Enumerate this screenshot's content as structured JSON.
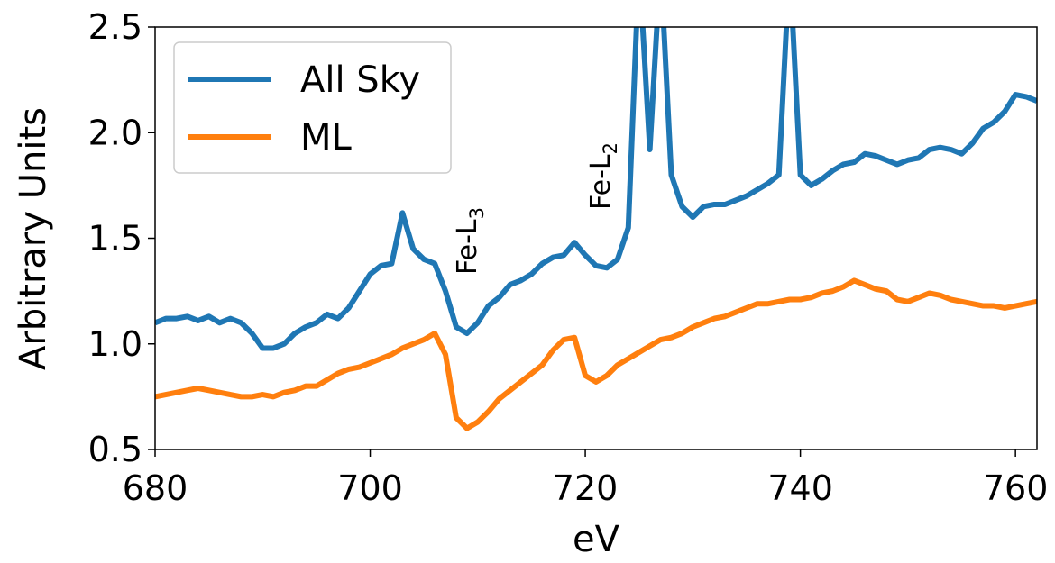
{
  "chart_data": {
    "type": "line",
    "xlabel": "eV",
    "ylabel": "Arbitrary Units",
    "x": [
      680,
      681,
      682,
      683,
      684,
      685,
      686,
      687,
      688,
      689,
      690,
      691,
      692,
      693,
      694,
      695,
      696,
      697,
      698,
      699,
      700,
      701,
      702,
      703,
      704,
      705,
      706,
      707,
      708,
      709,
      710,
      711,
      712,
      713,
      714,
      715,
      716,
      717,
      718,
      719,
      720,
      721,
      722,
      723,
      724,
      725,
      726,
      727,
      728,
      729,
      730,
      731,
      732,
      733,
      734,
      735,
      736,
      737,
      738,
      739,
      740,
      741,
      742,
      743,
      744,
      745,
      746,
      747,
      748,
      749,
      750,
      751,
      752,
      753,
      754,
      755,
      756,
      757,
      758,
      759,
      760,
      761,
      762
    ],
    "series": [
      {
        "name": "All Sky",
        "color": "#1f77b4",
        "values": [
          1.1,
          1.12,
          1.12,
          1.13,
          1.11,
          1.13,
          1.1,
          1.12,
          1.1,
          1.05,
          0.98,
          0.98,
          1.0,
          1.05,
          1.08,
          1.1,
          1.14,
          1.12,
          1.17,
          1.25,
          1.33,
          1.37,
          1.38,
          1.62,
          1.45,
          1.4,
          1.38,
          1.25,
          1.08,
          1.05,
          1.1,
          1.18,
          1.22,
          1.28,
          1.3,
          1.33,
          1.38,
          1.41,
          1.42,
          1.48,
          1.42,
          1.37,
          1.36,
          1.4,
          1.55,
          2.8,
          1.92,
          2.8,
          1.8,
          1.65,
          1.6,
          1.65,
          1.66,
          1.66,
          1.68,
          1.7,
          1.73,
          1.76,
          1.8,
          2.8,
          1.8,
          1.75,
          1.78,
          1.82,
          1.85,
          1.86,
          1.9,
          1.89,
          1.87,
          1.85,
          1.87,
          1.88,
          1.92,
          1.93,
          1.92,
          1.9,
          1.95,
          2.02,
          2.05,
          2.1,
          2.18,
          2.17,
          2.15
        ]
      },
      {
        "name": "ML",
        "color": "#ff7f0e",
        "values": [
          0.75,
          0.76,
          0.77,
          0.78,
          0.79,
          0.78,
          0.77,
          0.76,
          0.75,
          0.75,
          0.76,
          0.75,
          0.77,
          0.78,
          0.8,
          0.8,
          0.83,
          0.86,
          0.88,
          0.89,
          0.91,
          0.93,
          0.95,
          0.98,
          1.0,
          1.02,
          1.05,
          0.95,
          0.65,
          0.6,
          0.63,
          0.68,
          0.74,
          0.78,
          0.82,
          0.86,
          0.9,
          0.97,
          1.02,
          1.03,
          0.85,
          0.82,
          0.85,
          0.9,
          0.93,
          0.96,
          0.99,
          1.02,
          1.03,
          1.05,
          1.08,
          1.1,
          1.12,
          1.13,
          1.15,
          1.17,
          1.19,
          1.19,
          1.2,
          1.21,
          1.21,
          1.22,
          1.24,
          1.25,
          1.27,
          1.3,
          1.28,
          1.26,
          1.25,
          1.21,
          1.2,
          1.22,
          1.24,
          1.23,
          1.21,
          1.2,
          1.19,
          1.18,
          1.18,
          1.17,
          1.18,
          1.19,
          1.2
        ]
      }
    ],
    "xlim": [
      680,
      762
    ],
    "xticks": [
      680,
      700,
      720,
      740,
      760
    ],
    "ylim": [
      0.5,
      2.5
    ],
    "yticks": [
      0.5,
      {
        "value": 1,
        "label": "1.0"
      },
      1.5,
      {
        "value": 2,
        "label": "2.0"
      },
      2.5
    ],
    "legend": "upper left",
    "annotations": [
      {
        "text": "Fe-L",
        "sub": "3"
      },
      {
        "text": "Fe-L",
        "sub": "2"
      }
    ]
  }
}
